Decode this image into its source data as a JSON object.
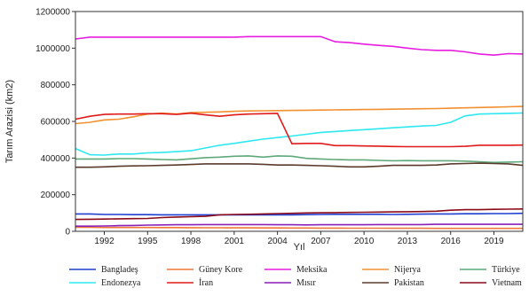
{
  "chart_data": {
    "type": "line",
    "title": "",
    "xlabel": "Yıl",
    "ylabel": "Tarım Arazisi (km2)",
    "xlim": [
      1990,
      2021
    ],
    "ylim": [
      0,
      1200000
    ],
    "xticks": [
      1992,
      1995,
      1998,
      2001,
      2004,
      2007,
      2010,
      2013,
      2016,
      2019
    ],
    "xtick_labels": [
      "1992",
      "1995",
      "1998",
      "2001",
      "2004",
      "2007",
      "2010",
      "2013",
      "2016",
      "2019"
    ],
    "yticks": [
      0,
      200000,
      400000,
      600000,
      800000,
      1000000,
      1200000
    ],
    "ytick_labels": [
      "0",
      "200000",
      "400000",
      "600000",
      "800000",
      "1000000",
      "1200000"
    ],
    "grid": false,
    "legend_position": "bottom",
    "x": [
      1990,
      1991,
      1992,
      1993,
      1994,
      1995,
      1996,
      1997,
      1998,
      1999,
      2000,
      2001,
      2002,
      2003,
      2004,
      2005,
      2006,
      2007,
      2008,
      2009,
      2010,
      2011,
      2012,
      2013,
      2014,
      2015,
      2016,
      2017,
      2018,
      2019,
      2020,
      2021
    ],
    "series": [
      {
        "name": "Bangladeş",
        "color": "#1f3fd0",
        "values": [
          95000,
          95000,
          92000,
          92000,
          91000,
          91000,
          90000,
          90000,
          90000,
          90000,
          90000,
          90000,
          90000,
          90000,
          90000,
          90000,
          91000,
          92000,
          93000,
          93000,
          93000,
          93000,
          92000,
          93000,
          94000,
          95000,
          95000,
          96000,
          96000,
          97000,
          97000,
          98000
        ]
      },
      {
        "name": "Güney Kore",
        "color": "#f07838",
        "values": [
          22000,
          22000,
          21000,
          21000,
          21000,
          21000,
          20500,
          20500,
          20000,
          19500,
          19500,
          19000,
          19000,
          18500,
          18500,
          18000,
          18000,
          17500,
          17500,
          17000,
          17000,
          17000,
          16500,
          16500,
          16500,
          16000,
          16000,
          16000,
          16000,
          16000,
          16000,
          16000
        ]
      },
      {
        "name": "Meksika",
        "color": "#e81ce0",
        "values": [
          1050000,
          1060000,
          1060000,
          1060000,
          1060000,
          1060000,
          1060000,
          1060000,
          1060000,
          1060000,
          1060000,
          1060000,
          1063000,
          1063000,
          1063000,
          1063000,
          1063000,
          1063000,
          1035000,
          1030000,
          1022000,
          1015000,
          1010000,
          1000000,
          992000,
          988000,
          988000,
          980000,
          968000,
          962000,
          970000,
          968000
        ]
      },
      {
        "name": "Nijerya",
        "color": "#f29030",
        "values": [
          588000,
          595000,
          608000,
          612000,
          625000,
          640000,
          645000,
          640000,
          648000,
          650000,
          652000,
          655000,
          657000,
          658000,
          659000,
          660000,
          661000,
          662000,
          663000,
          664000,
          665000,
          666000,
          667000,
          668000,
          669000,
          670000,
          672000,
          674000,
          676000,
          678000,
          680000,
          682000
        ]
      },
      {
        "name": "Türkiye",
        "color": "#5fa87a",
        "values": [
          395000,
          395000,
          395000,
          397000,
          397000,
          395000,
          392000,
          390000,
          396000,
          402000,
          405000,
          410000,
          412000,
          405000,
          412000,
          410000,
          398000,
          395000,
          392000,
          390000,
          390000,
          387000,
          385000,
          386000,
          385000,
          385000,
          385000,
          383000,
          380000,
          376000,
          378000,
          380000
        ]
      },
      {
        "name": "Endonezya",
        "color": "#2de8f0",
        "values": [
          452000,
          418000,
          416000,
          422000,
          422000,
          428000,
          430000,
          435000,
          440000,
          455000,
          470000,
          480000,
          492000,
          503000,
          512000,
          520000,
          530000,
          540000,
          545000,
          550000,
          555000,
          560000,
          565000,
          570000,
          575000,
          578000,
          595000,
          630000,
          640000,
          642000,
          644000,
          646000
        ]
      },
      {
        "name": "İran",
        "color": "#e01a1a",
        "values": [
          612000,
          628000,
          638000,
          640000,
          640000,
          642000,
          642000,
          638000,
          645000,
          636000,
          628000,
          636000,
          640000,
          642000,
          644000,
          478000,
          480000,
          480000,
          468000,
          468000,
          466000,
          465000,
          463000,
          462000,
          462000,
          462000,
          462000,
          464000,
          470000,
          470000,
          470000,
          471000
        ]
      },
      {
        "name": "Mısır",
        "color": "#8a1fb8",
        "values": [
          28000,
          28000,
          29000,
          31000,
          32000,
          34000,
          35000,
          36000,
          36000,
          37000,
          37000,
          37000,
          37000,
          37000,
          36000,
          36000,
          35000,
          36000,
          36000,
          36000,
          36000,
          37000,
          37000,
          37000,
          37000,
          38000,
          38000,
          38000,
          38000,
          38000,
          38000,
          38000
        ]
      },
      {
        "name": "Pakistan",
        "color": "#5a3a2a",
        "values": [
          350000,
          350000,
          352000,
          355000,
          357000,
          358000,
          360000,
          362000,
          365000,
          368000,
          368000,
          368000,
          368000,
          366000,
          362000,
          362000,
          360000,
          358000,
          355000,
          352000,
          352000,
          355000,
          360000,
          360000,
          360000,
          362000,
          368000,
          370000,
          372000,
          370000,
          368000,
          360000
        ]
      },
      {
        "name": "Vietnam",
        "color": "#8b0a1a",
        "values": [
          65000,
          66000,
          67000,
          68000,
          69000,
          70000,
          75000,
          78000,
          80000,
          82000,
          90000,
          92000,
          93000,
          95000,
          97000,
          98000,
          100000,
          101000,
          102000,
          103000,
          104000,
          105000,
          106000,
          107000,
          108000,
          110000,
          115000,
          118000,
          118000,
          120000,
          121000,
          122000
        ]
      }
    ]
  }
}
